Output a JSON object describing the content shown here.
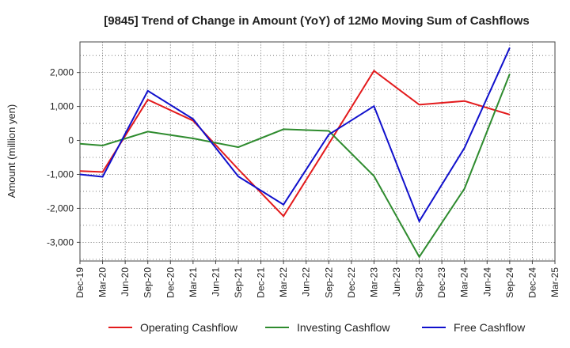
{
  "chart_data": {
    "type": "line",
    "title": "[9845]  Trend of Change in Amount (YoY) of 12Mo Moving Sum of Cashflows",
    "xlabel": "",
    "ylabel": "Amount (million yen)",
    "ylim": [
      -3550,
      2900
    ],
    "yticks": [
      -3000,
      -2000,
      -1000,
      0,
      1000,
      2000
    ],
    "ytick_labels": [
      "-3,000",
      "-2,000",
      "-1,000",
      "0",
      "1,000",
      "2,000"
    ],
    "categories": [
      "Dec-19",
      "Mar-20",
      "Jun-20",
      "Sep-20",
      "Dec-20",
      "Mar-21",
      "Jun-21",
      "Sep-21",
      "Dec-21",
      "Mar-22",
      "Jun-22",
      "Sep-22",
      "Dec-22",
      "Mar-23",
      "Jun-23",
      "Sep-23",
      "Dec-23",
      "Mar-24",
      "Jun-24",
      "Sep-24",
      "Dec-24",
      "Mar-25"
    ],
    "grid": true,
    "legend_position": "bottom",
    "series": [
      {
        "name": "Operating Cashflow",
        "color": "#e31a1c",
        "points": [
          [
            0,
            -900
          ],
          [
            1,
            -930
          ],
          [
            3,
            1200
          ],
          [
            5,
            580
          ],
          [
            7,
            -850
          ],
          [
            9,
            -2230
          ],
          [
            11,
            -100
          ],
          [
            13,
            2050
          ],
          [
            15,
            1050
          ],
          [
            17,
            1160
          ],
          [
            19,
            760
          ]
        ]
      },
      {
        "name": "Investing Cashflow",
        "color": "#2e8b2e",
        "points": [
          [
            0,
            -100
          ],
          [
            1,
            -150
          ],
          [
            3,
            260
          ],
          [
            5,
            60
          ],
          [
            7,
            -200
          ],
          [
            9,
            330
          ],
          [
            11,
            280
          ],
          [
            13,
            -1050
          ],
          [
            15,
            -3430
          ],
          [
            17,
            -1420
          ],
          [
            19,
            1960
          ]
        ]
      },
      {
        "name": "Free Cashflow",
        "color": "#1010cc",
        "points": [
          [
            0,
            -1000
          ],
          [
            1,
            -1070
          ],
          [
            3,
            1460
          ],
          [
            5,
            630
          ],
          [
            7,
            -1060
          ],
          [
            9,
            -1890
          ],
          [
            11,
            170
          ],
          [
            13,
            1010
          ],
          [
            15,
            -2380
          ],
          [
            17,
            -220
          ],
          [
            19,
            2730
          ]
        ]
      }
    ]
  }
}
